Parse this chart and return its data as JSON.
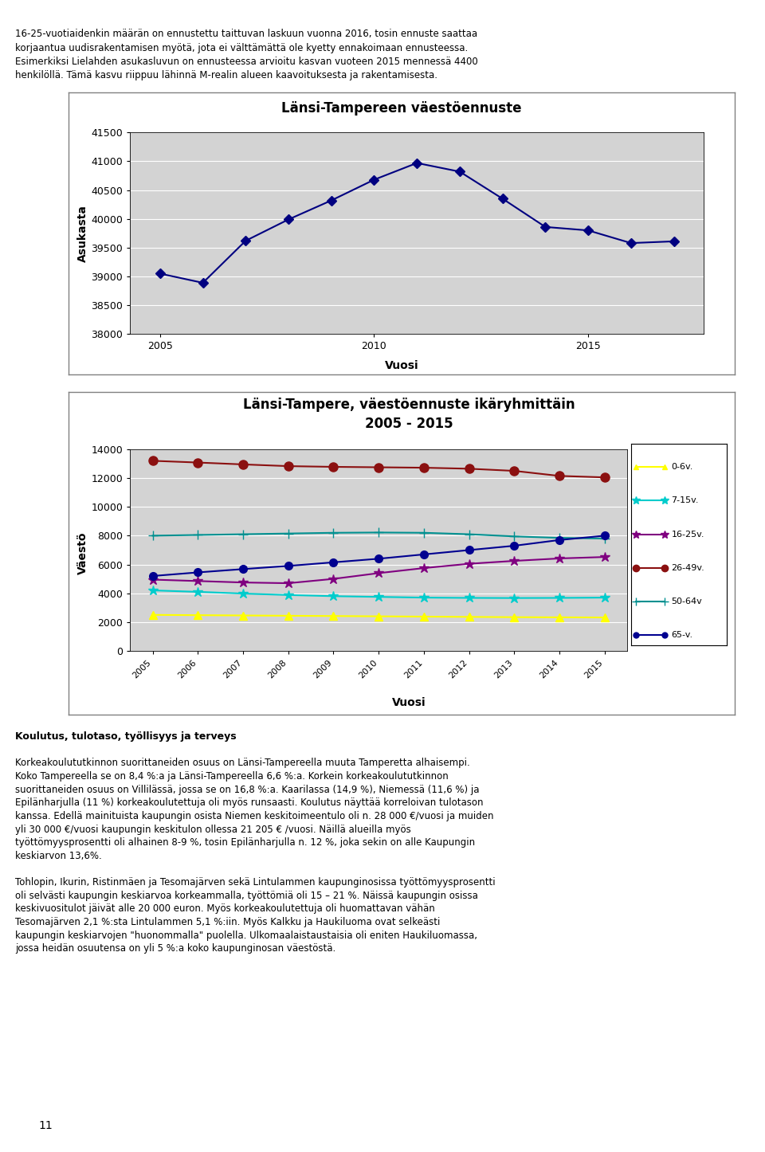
{
  "chart1_title": "Länsi-Tampereen väestöennuste",
  "chart1_xlabel": "Vuosi",
  "chart1_ylabel": "Asukasta",
  "chart1_years": [
    2005,
    2006,
    2007,
    2008,
    2009,
    2010,
    2011,
    2012,
    2013,
    2014,
    2015,
    2016,
    2017
  ],
  "chart1_values": [
    39050,
    38890,
    39620,
    39990,
    40320,
    40680,
    40970,
    40820,
    40350,
    39860,
    39800,
    39580,
    39610
  ],
  "chart1_ylim": [
    38000,
    41500
  ],
  "chart1_yticks": [
    38000,
    38500,
    39000,
    39500,
    40000,
    40500,
    41000,
    41500
  ],
  "chart1_line_color": "#000080",
  "chart1_marker": "D",
  "chart2_title": "Länsi-Tampere, väestöennuste ikäryhmittäin\n2005 - 2015",
  "chart2_xlabel": "Vuosi",
  "chart2_ylabel": "Väestö",
  "chart2_years": [
    2005,
    2006,
    2007,
    2008,
    2009,
    2010,
    2011,
    2012,
    2013,
    2014,
    2015
  ],
  "chart2_ylim": [
    0,
    14000
  ],
  "chart2_yticks": [
    0,
    2000,
    4000,
    6000,
    8000,
    10000,
    12000,
    14000
  ],
  "series": [
    {
      "label": "0-6v.",
      "color": "#FFFF00",
      "marker": "^",
      "markersize": 7,
      "values": [
        2500,
        2480,
        2460,
        2440,
        2420,
        2400,
        2380,
        2360,
        2340,
        2330,
        2320
      ]
    },
    {
      "label": "7-15v.",
      "color": "#00CCCC",
      "marker": "*",
      "markersize": 9,
      "values": [
        4200,
        4100,
        3980,
        3880,
        3800,
        3750,
        3700,
        3680,
        3670,
        3680,
        3700
      ]
    },
    {
      "label": "16-25v.",
      "color": "#800080",
      "marker": "*",
      "markersize": 9,
      "values": [
        4950,
        4850,
        4750,
        4700,
        5000,
        5400,
        5750,
        6050,
        6250,
        6420,
        6520
      ]
    },
    {
      "label": "26-49v.",
      "color": "#8B1010",
      "marker": "o",
      "markersize": 8,
      "values": [
        13200,
        13080,
        12950,
        12830,
        12780,
        12750,
        12720,
        12650,
        12500,
        12150,
        12050
      ]
    },
    {
      "label": "50-64v",
      "color": "#009090",
      "marker": "+",
      "markersize": 9,
      "values": [
        8000,
        8050,
        8100,
        8150,
        8200,
        8220,
        8200,
        8100,
        7950,
        7850,
        7800
      ]
    },
    {
      "label": "65-v.",
      "color": "#000090",
      "marker": "o",
      "markersize": 7,
      "values": [
        5200,
        5450,
        5680,
        5900,
        6150,
        6400,
        6700,
        7000,
        7300,
        7700,
        8000
      ]
    }
  ],
  "page_bg": "#FFFFFF",
  "plot_area_bg": "#D3D3D3",
  "box_border": "#808080",
  "text_lines_top": [
    "16-25-vuotiaidenkin määrän on ennustettu taittuvan laskuun vuonna 2016, tosin ennuste saattaa",
    "korjaantua uudisrakentamisen myötä, jota ei välttämättä ole kyetty ennakoimaan ennusteessa.",
    "Esimerkiksi Lielahden asukasluvun on ennusteessa arvioitu kasvan vuoteen 2015 mennessä 4400",
    "henkilöllä. Tämä kasvu riippuu lähinnä M-realin alueen kaavoituksesta ja rakentamisesta."
  ],
  "text_lines_bottom": [
    "Koulutus, tulotaso, työllisyys ja terveys",
    "",
    "Korkeakoulututkinnon suorittaneiden osuus on Länsi-Tampereella muuta Tamperetta alhaisempi.",
    "Koko Tampereella se on 8,4 %:a ja Länsi-Tampereella 6,6 %:a. Korkein korkeakoulututkinnon",
    "suorittaneiden osuus on Villilässä, jossa se on 16,8 %:a. Kaarilassa (14,9 %), Niemessä (11,6 %) ja",
    "Epilänharjulla (11 %) korkeakoulutettuja oli myös runsaasti. Koulutus näyttää korreloivan tulotason",
    "kanssa. Edellä mainituista kaupungin osista Niemen keskitoimeentulo oli n. 28 000 €/vuosi ja muiden",
    "yli 30 000 €/vuosi kaupungin keskitulon ollessa 21 205 € /vuosi. Näillä alueilla myös",
    "työttömyysprosentti oli alhainen 8-9 %, tosin Epilänharjulla n. 12 %, joka sekin on alle Kaupungin",
    "keskiarvon 13,6%.",
    "",
    "Tohlopin, Ikurin, Ristinmäen ja Tesomajärven sekä Lintulammen kaupunginosissa työttömyysprosentti",
    "oli selvästi kaupungin keskiarvoa korkeammalla, työttömiä oli 15 – 21 %. Näissä kaupungin osissa",
    "keskivuositulot jäivät alle 20 000 euron. Myös korkeakoulutettuja oli huomattavan vähän",
    "Tesomajärven 2,1 %:sta Lintulammen 5,1 %:iin. Myös Kalkku ja Haukiluoma ovat selkeästi",
    "kaupungin keskiarvojen \"huonommalla\" puolella. Ulkomaalaistaustaisia oli eniten Haukiluomassa,",
    "jossa heidän osuutensa on yli 5 %:a koko kaupunginosan väestöstä."
  ],
  "footer_number": "11"
}
